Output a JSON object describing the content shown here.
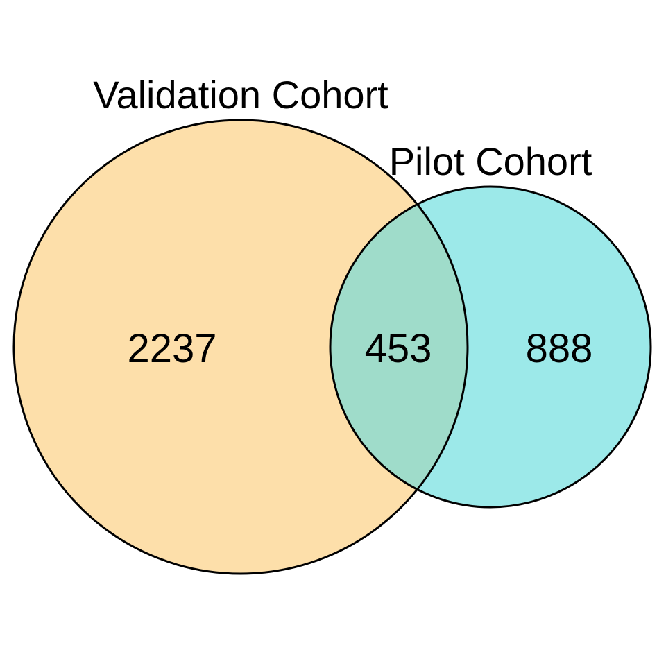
{
  "sets": [
    {
      "name": "Validation Cohort",
      "fill": "#FDDFAA"
    },
    {
      "name": "Pilot Cohort",
      "fill": "#9CE9E9"
    }
  ],
  "intersection_fill": "#9FDCCA",
  "outline_color": "#000000",
  "counts": {
    "validation_only": "2237",
    "both": "453",
    "pilot_only": "888"
  }
}
